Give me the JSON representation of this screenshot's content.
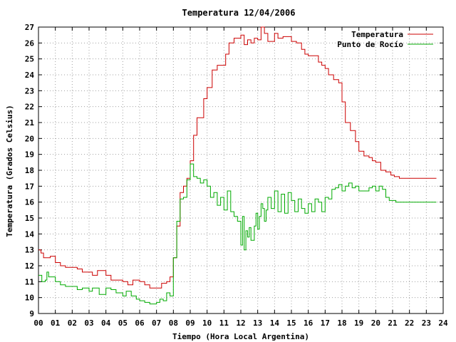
{
  "chart_data": {
    "type": "line",
    "title": "Temperatura 12/04/2006",
    "xlabel": "Tiempo (Hora Local Argentina)",
    "ylabel": "Temperatura (Grados Celsius)",
    "xlim": [
      0,
      24
    ],
    "ylim": [
      9,
      27
    ],
    "xticks": [
      "00",
      "01",
      "02",
      "03",
      "04",
      "05",
      "06",
      "07",
      "08",
      "09",
      "10",
      "11",
      "12",
      "13",
      "14",
      "15",
      "16",
      "17",
      "18",
      "19",
      "20",
      "21",
      "22",
      "23",
      "24"
    ],
    "yticks": [
      9,
      10,
      11,
      12,
      13,
      14,
      15,
      16,
      17,
      18,
      19,
      20,
      21,
      22,
      23,
      24,
      25,
      26,
      27
    ],
    "grid": true,
    "legend_position": "top-right",
    "series": [
      {
        "name": "Temperatura",
        "color": "#cc0000",
        "x": [
          0,
          0.15,
          0.3,
          0.5,
          0.7,
          1.0,
          1.3,
          1.6,
          2.0,
          2.3,
          2.6,
          3.0,
          3.2,
          3.5,
          3.7,
          4.0,
          4.3,
          4.6,
          5.0,
          5.3,
          5.6,
          6.0,
          6.3,
          6.6,
          7.0,
          7.3,
          7.6,
          7.8,
          8.0,
          8.2,
          8.4,
          8.6,
          8.8,
          9.0,
          9.2,
          9.4,
          9.6,
          9.8,
          10.0,
          10.3,
          10.6,
          10.9,
          11.1,
          11.3,
          11.6,
          11.9,
          12.0,
          12.2,
          12.4,
          12.6,
          12.8,
          13.0,
          13.2,
          13.4,
          13.6,
          13.8,
          14.0,
          14.2,
          14.5,
          14.8,
          15.0,
          15.3,
          15.6,
          15.8,
          16.0,
          16.3,
          16.6,
          16.8,
          17.0,
          17.2,
          17.5,
          17.8,
          18.0,
          18.2,
          18.5,
          18.8,
          19.0,
          19.3,
          19.6,
          19.8,
          20.0,
          20.3,
          20.6,
          20.9,
          21.1,
          21.4,
          21.8,
          22.2,
          22.6,
          23.0,
          23.6
        ],
        "y": [
          13.0,
          12.8,
          12.5,
          12.5,
          12.6,
          12.2,
          12.0,
          11.9,
          11.9,
          11.8,
          11.6,
          11.6,
          11.4,
          11.7,
          11.7,
          11.4,
          11.1,
          11.1,
          11.0,
          10.8,
          11.1,
          11.0,
          10.8,
          10.6,
          10.6,
          10.9,
          11.0,
          11.3,
          12.5,
          14.5,
          16.6,
          17.0,
          17.5,
          18.6,
          20.2,
          21.3,
          21.3,
          22.5,
          23.2,
          24.3,
          24.6,
          24.6,
          25.3,
          26.0,
          26.3,
          26.3,
          26.5,
          25.9,
          26.2,
          26.0,
          26.3,
          26.2,
          27.0,
          26.6,
          26.1,
          26.1,
          26.6,
          26.3,
          26.4,
          26.4,
          26.1,
          26.0,
          25.6,
          25.3,
          25.2,
          25.2,
          24.8,
          24.6,
          24.4,
          24.0,
          23.7,
          23.5,
          22.3,
          21.0,
          20.5,
          19.8,
          19.2,
          18.9,
          18.8,
          18.6,
          18.5,
          18.0,
          17.9,
          17.7,
          17.6,
          17.5,
          17.5,
          17.5,
          17.5,
          17.5,
          17.5
        ]
      },
      {
        "name": "Punto de Rocío",
        "color": "#00aa00",
        "x": [
          0,
          0.2,
          0.4,
          0.5,
          0.6,
          0.8,
          1.0,
          1.3,
          1.6,
          2.0,
          2.3,
          2.6,
          3.0,
          3.2,
          3.4,
          3.6,
          3.8,
          4.0,
          4.3,
          4.6,
          5.0,
          5.2,
          5.5,
          5.8,
          6.0,
          6.3,
          6.6,
          7.0,
          7.2,
          7.4,
          7.6,
          7.8,
          8.0,
          8.2,
          8.4,
          8.6,
          8.8,
          9.0,
          9.2,
          9.4,
          9.6,
          9.8,
          10.0,
          10.2,
          10.4,
          10.6,
          10.8,
          11.0,
          11.2,
          11.4,
          11.6,
          11.8,
          12.0,
          12.1,
          12.2,
          12.3,
          12.4,
          12.5,
          12.6,
          12.8,
          12.9,
          13.0,
          13.1,
          13.2,
          13.3,
          13.4,
          13.5,
          13.6,
          13.8,
          14.0,
          14.2,
          14.4,
          14.6,
          14.8,
          15.0,
          15.2,
          15.4,
          15.6,
          15.8,
          16.0,
          16.2,
          16.4,
          16.6,
          16.8,
          17.0,
          17.2,
          17.4,
          17.6,
          17.8,
          18.0,
          18.2,
          18.4,
          18.6,
          18.8,
          19.0,
          19.2,
          19.4,
          19.6,
          19.8,
          20.0,
          20.2,
          20.4,
          20.6,
          20.8,
          21.0,
          21.2,
          21.5,
          22.0,
          22.5,
          23.0,
          23.6
        ],
        "y": [
          11.4,
          11.0,
          11.1,
          11.6,
          11.3,
          11.3,
          11.0,
          10.8,
          10.7,
          10.7,
          10.5,
          10.6,
          10.4,
          10.6,
          10.6,
          10.2,
          10.2,
          10.6,
          10.5,
          10.3,
          10.1,
          10.4,
          10.1,
          9.9,
          9.8,
          9.7,
          9.6,
          9.7,
          9.9,
          9.8,
          10.3,
          10.1,
          12.5,
          14.8,
          16.2,
          16.3,
          17.4,
          18.4,
          17.6,
          17.5,
          17.2,
          17.4,
          17.0,
          16.3,
          16.6,
          15.8,
          16.3,
          15.5,
          16.7,
          15.4,
          15.1,
          14.8,
          13.3,
          15.1,
          13.0,
          14.2,
          13.8,
          14.4,
          13.6,
          14.5,
          15.3,
          14.3,
          15.1,
          15.9,
          15.6,
          14.8,
          15.5,
          16.3,
          15.6,
          16.7,
          15.4,
          16.5,
          15.3,
          16.6,
          16.1,
          15.4,
          16.2,
          15.6,
          15.3,
          15.9,
          15.4,
          16.2,
          16.0,
          15.4,
          16.3,
          16.2,
          16.8,
          16.9,
          17.1,
          16.7,
          17.0,
          17.2,
          16.9,
          17.0,
          16.7,
          16.7,
          16.7,
          16.9,
          17.0,
          16.7,
          17.0,
          16.8,
          16.3,
          16.1,
          16.1,
          16.0,
          16.0,
          16.0,
          16.0,
          16.0,
          16.0
        ]
      }
    ]
  }
}
